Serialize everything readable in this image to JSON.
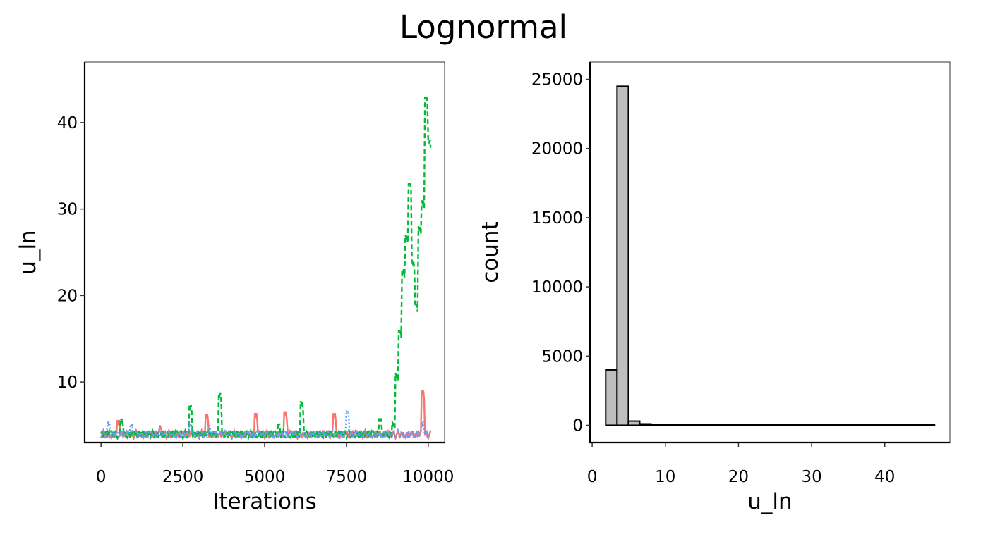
{
  "title": "Lognormal",
  "chart_data": [
    {
      "type": "line",
      "xlabel": "Iterations",
      "ylabel": "u_ln",
      "xlim": [
        -500,
        10500
      ],
      "ylim": [
        3,
        47
      ],
      "x_ticks": [
        0,
        2500,
        5000,
        7500,
        10000
      ],
      "x_tick_labels": [
        "0",
        "2500",
        "5000",
        "7500",
        "10000"
      ],
      "y_ticks": [
        10,
        20,
        30,
        40
      ],
      "y_tick_labels": [
        "10",
        "20",
        "30",
        "40"
      ],
      "grid": false,
      "legend": "none",
      "x": [
        0,
        100,
        200,
        300,
        400,
        500,
        600,
        700,
        800,
        900,
        1000,
        1100,
        1200,
        1300,
        1400,
        1500,
        1600,
        1700,
        1800,
        1900,
        2000,
        2100,
        2200,
        2300,
        2400,
        2500,
        2600,
        2700,
        2800,
        2900,
        3000,
        3100,
        3200,
        3300,
        3400,
        3500,
        3600,
        3700,
        3800,
        3900,
        4000,
        4100,
        4200,
        4300,
        4400,
        4500,
        4600,
        4700,
        4800,
        4900,
        5000,
        5100,
        5200,
        5300,
        5400,
        5500,
        5600,
        5700,
        5800,
        5900,
        6000,
        6100,
        6200,
        6300,
        6400,
        6500,
        6600,
        6700,
        6800,
        6900,
        7000,
        7100,
        7200,
        7300,
        7400,
        7500,
        7600,
        7700,
        7800,
        7900,
        8000,
        8100,
        8200,
        8300,
        8400,
        8500,
        8600,
        8700,
        8800,
        8900,
        9000,
        9100,
        9200,
        9300,
        9400,
        9500,
        9600,
        9700,
        9800,
        9900,
        10000
      ],
      "series": [
        {
          "color": "#F8766D",
          "linestyle": "solid",
          "values": [
            4.0,
            3.8,
            4.3,
            3.7,
            4.1,
            5.6,
            3.9,
            4.2,
            3.7,
            4.4,
            3.8,
            4.1,
            3.6,
            4.3,
            3.9,
            4.0,
            4.2,
            3.7,
            5.0,
            4.1,
            3.8,
            4.3,
            3.6,
            4.0,
            4.2,
            3.9,
            4.4,
            3.7,
            4.1,
            3.8,
            4.0,
            3.6,
            6.3,
            3.9,
            4.2,
            4.5,
            3.8,
            4.0,
            4.1,
            3.7,
            4.3,
            3.9,
            4.0,
            3.6,
            4.2,
            3.8,
            4.1,
            6.4,
            3.7,
            4.0,
            4.2,
            3.9,
            3.8,
            4.4,
            3.6,
            4.1,
            6.6,
            4.0,
            3.7,
            4.3,
            3.9,
            4.1,
            3.8,
            4.0,
            4.2,
            3.7,
            4.5,
            3.9,
            4.0,
            3.8,
            4.1,
            6.4,
            3.7,
            4.2,
            3.9,
            4.0,
            3.6,
            4.3,
            3.8,
            4.1,
            3.9,
            4.0,
            4.2,
            3.7,
            4.1,
            3.8,
            4.0,
            3.6,
            4.3,
            3.9,
            4.1,
            3.8,
            4.0,
            3.7,
            4.2,
            3.9,
            4.1,
            3.8,
            9.0,
            4.2,
            3.9
          ]
        },
        {
          "color": "#00BA38",
          "linestyle": "dashed",
          "values": [
            3.9,
            4.2,
            3.7,
            4.0,
            4.4,
            3.8,
            5.8,
            4.1,
            3.6,
            4.3,
            3.9,
            4.0,
            3.7,
            4.2,
            3.8,
            4.1,
            3.6,
            4.4,
            3.9,
            4.0,
            4.2,
            3.7,
            4.1,
            3.9,
            4.3,
            3.8,
            4.0,
            7.3,
            3.9,
            4.1,
            3.7,
            4.2,
            3.8,
            4.0,
            3.6,
            4.3,
            8.7,
            4.5,
            3.9,
            4.1,
            3.8,
            4.2,
            3.7,
            4.0,
            3.9,
            4.1,
            3.6,
            4.3,
            3.8,
            4.0,
            4.2,
            3.9,
            4.1,
            3.7,
            5.2,
            3.8,
            4.0,
            4.2,
            3.9,
            3.7,
            4.1,
            7.8,
            4.3,
            3.8,
            4.0,
            3.9,
            4.2,
            3.7,
            4.1,
            3.8,
            4.0,
            4.3,
            3.9,
            3.7,
            4.1,
            3.8,
            4.2,
            3.9,
            4.0,
            3.6,
            4.1,
            3.9,
            4.2,
            3.8,
            4.0,
            5.8,
            3.9,
            4.3,
            4.6,
            5.4,
            11,
            16,
            23,
            27,
            33,
            24,
            19,
            28,
            31,
            43,
            38
          ]
        },
        {
          "color": "#619CFF",
          "linestyle": "dotted",
          "values": [
            3.8,
            4.1,
            5.5,
            3.9,
            4.0,
            3.7,
            4.2,
            3.8,
            4.0,
            5.1,
            3.9,
            3.7,
            4.1,
            3.8,
            4.0,
            4.2,
            3.6,
            3.9,
            4.1,
            3.8,
            4.0,
            3.7,
            3.9,
            4.2,
            3.8,
            4.0,
            3.6,
            5.2,
            3.9,
            4.1,
            3.8,
            4.0,
            3.7,
            5.0,
            3.9,
            4.1,
            3.8,
            3.7,
            4.0,
            3.9,
            4.1,
            3.8,
            4.0,
            3.6,
            3.9,
            4.2,
            3.8,
            4.0,
            4.8,
            3.9,
            3.7,
            4.1,
            3.8,
            4.0,
            3.9,
            3.6,
            4.2,
            3.8,
            4.0,
            3.9,
            4.1,
            3.8,
            4.0,
            3.7,
            3.9,
            4.8,
            3.8,
            4.0,
            3.6,
            3.9,
            4.2,
            3.8,
            4.0,
            3.9,
            3.7,
            6.7,
            3.8,
            4.1,
            3.9,
            4.0,
            3.8,
            4.0,
            3.7,
            4.1,
            3.9,
            4.0,
            3.8,
            4.2,
            3.9,
            4.0,
            3.8,
            4.1,
            3.9,
            4.0,
            3.7,
            4.2,
            3.9,
            4.1,
            5.4,
            4.0,
            3.9
          ]
        }
      ]
    },
    {
      "type": "bar",
      "subtype": "histogram",
      "xlabel": "u_ln",
      "ylabel": "count",
      "xlim": [
        -0.3,
        48.9
      ],
      "ylim": [
        -1250,
        26250
      ],
      "x_ticks": [
        0,
        10,
        20,
        30,
        40
      ],
      "x_tick_labels": [
        "0",
        "10",
        "20",
        "30",
        "40"
      ],
      "y_ticks": [
        0,
        5000,
        10000,
        15000,
        20000,
        25000
      ],
      "y_tick_labels": [
        "0",
        "5000",
        "10000",
        "15000",
        "20000",
        "25000"
      ],
      "grid": false,
      "fill_color": "#BEBEBE",
      "edge_color": "#000000",
      "bin_start": 1.85,
      "bin_width": 1.55,
      "counts": [
        4000,
        24500,
        300,
        100,
        40,
        30,
        25,
        30,
        35,
        40,
        45,
        40,
        50,
        45,
        40,
        45,
        50,
        45,
        40,
        35,
        30,
        35,
        40,
        30,
        35,
        40,
        45,
        35,
        30
      ]
    }
  ]
}
